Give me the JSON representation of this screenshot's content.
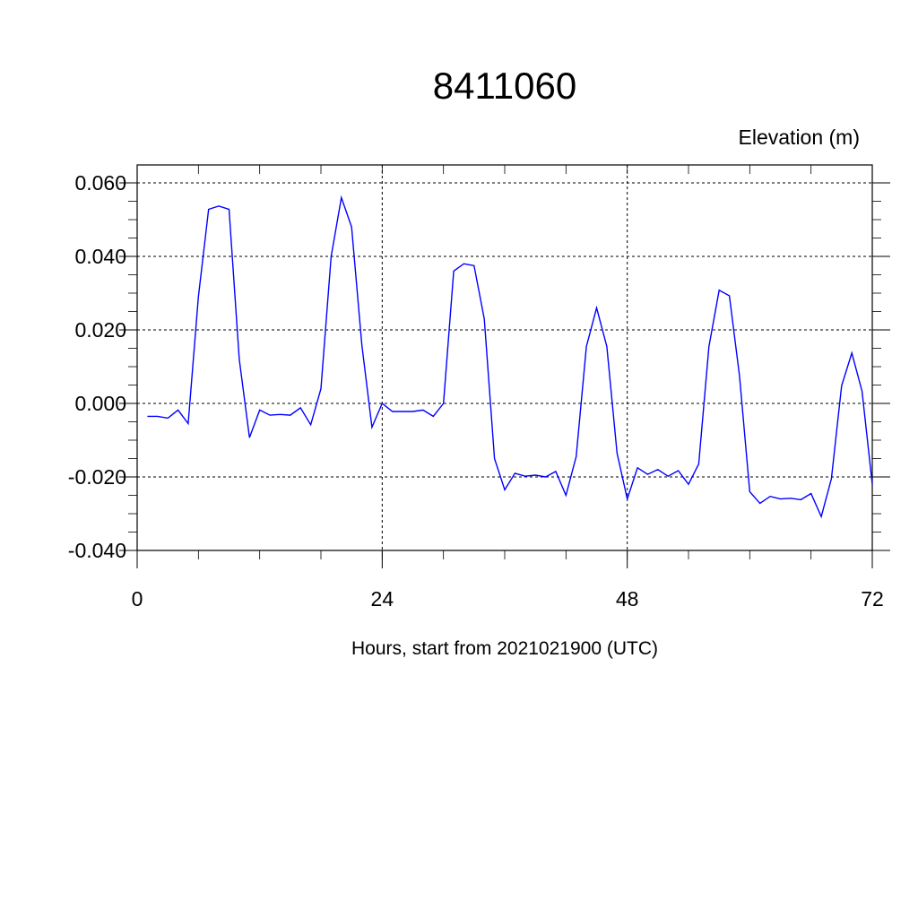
{
  "chart_data": {
    "type": "line",
    "title": "8411060",
    "subtitle": "Elevation (m)",
    "xlabel": "Hours, start from 2021021900 (UTC)",
    "ylabel": "",
    "xlim": [
      0,
      72
    ],
    "ylim": [
      -0.04,
      0.06
    ],
    "xticks": [
      0,
      24,
      48,
      72
    ],
    "xtick_labels": [
      "0",
      "24",
      "48",
      "72"
    ],
    "yticks": [
      -0.04,
      -0.02,
      0.0,
      0.02,
      0.04,
      0.06
    ],
    "ytick_labels": [
      "-0.040",
      "-0.020",
      "0.000",
      "0.020",
      "0.040",
      "0.060"
    ],
    "grid": true,
    "line_color": "#0000ff",
    "series": [
      {
        "x": [
          1,
          2,
          3,
          4,
          5,
          6,
          7,
          8,
          9,
          10,
          11,
          12,
          13,
          14,
          15,
          16,
          17,
          18,
          19,
          20,
          21,
          22,
          23,
          24,
          25,
          26,
          27,
          28,
          29,
          30,
          31,
          32,
          33,
          34,
          35,
          36,
          37,
          38,
          39,
          40,
          41,
          42,
          43,
          44,
          45,
          46,
          47,
          48,
          49,
          50,
          51,
          52,
          53,
          54,
          55,
          56,
          57,
          58,
          59,
          60,
          61,
          62,
          63,
          64,
          65,
          66,
          67,
          68,
          69,
          70,
          71,
          72
        ],
        "values": [
          -0.0035,
          -0.0035,
          -0.004,
          -0.0018,
          -0.0055,
          0.029,
          0.0528,
          0.0537,
          0.0528,
          0.012,
          -0.0093,
          -0.0018,
          -0.0032,
          -0.003,
          -0.0032,
          -0.0012,
          -0.0058,
          0.004,
          0.04,
          0.056,
          0.048,
          0.016,
          -0.0065,
          0.0,
          -0.0022,
          -0.0022,
          -0.0022,
          -0.0018,
          -0.0035,
          0.0,
          0.036,
          0.038,
          0.0375,
          0.023,
          -0.015,
          -0.0235,
          -0.019,
          -0.0198,
          -0.0195,
          -0.02,
          -0.0185,
          -0.025,
          -0.0145,
          0.0155,
          0.026,
          0.0155,
          -0.0135,
          -0.026,
          -0.0175,
          -0.0193,
          -0.018,
          -0.0198,
          -0.0183,
          -0.022,
          -0.0165,
          0.0155,
          0.0308,
          0.0293,
          0.0075,
          -0.024,
          -0.0272,
          -0.0253,
          -0.026,
          -0.0258,
          -0.0262,
          -0.0245,
          -0.0308,
          -0.0205,
          0.0048,
          0.0137,
          0.0033,
          -0.022
        ]
      }
    ]
  }
}
